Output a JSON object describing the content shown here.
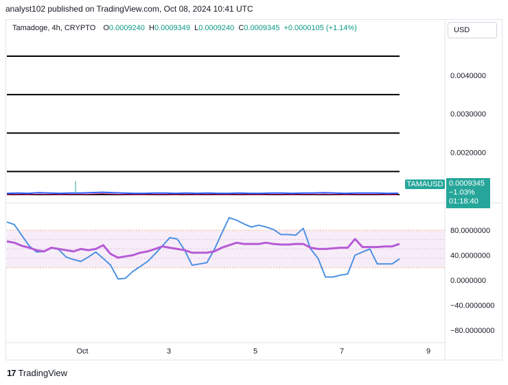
{
  "header": {
    "text": "analyst102 published on TradingView.com, Oct 08, 2024 10:41 UTC"
  },
  "legend": {
    "symbol": "Tamadoge, 4h, CRYPTO",
    "o_label": "O",
    "o_value": "0.0009240",
    "h_label": "H",
    "h_value": "0.0009349",
    "l_label": "L",
    "l_value": "0.0009240",
    "c_label": "C",
    "c_value": "0.0009345",
    "change": "+0.0000105 (+1.14%)"
  },
  "currency_button": "USD",
  "price_tag": {
    "symbol": "TAMAUSD",
    "price": "0.0009345",
    "change": "−1.03%",
    "countdown": "01:18:40"
  },
  "footer": {
    "brand": "TradingView"
  },
  "colors": {
    "accent": "#26a69a",
    "k_line": "#4a90e2",
    "d_line": "#b55ad6",
    "band_fill": "#f3e5f5",
    "hline": "#000000"
  },
  "chart_data": [
    {
      "type": "line",
      "name": "price",
      "y_ticks": [
        "0.0040000",
        "0.0030000",
        "0.0020000"
      ],
      "ylim": [
        0.0009,
        0.0045
      ],
      "horizontal_levels": [
        0.0045,
        0.0035,
        0.0025,
        0.0015,
        0.0009
      ],
      "price_series": [
        0.00093,
        0.00094,
        0.00093,
        0.00095,
        0.00094,
        0.00093,
        0.00094,
        0.00094,
        0.00095,
        0.00096,
        0.00095,
        0.00094,
        0.00093,
        0.00093,
        0.00094,
        0.00094,
        0.00093,
        0.00094,
        0.00093,
        0.00094,
        0.00093,
        0.00093,
        0.00094,
        0.00093,
        0.00093,
        0.00094,
        0.00094,
        0.00093,
        0.00094,
        0.00094,
        0.00095,
        0.00094,
        0.00093,
        0.00094,
        0.00094,
        0.00094,
        0.00093,
        0.000935
      ],
      "spike": {
        "value": 0.00125
      }
    },
    {
      "type": "line",
      "name": "stochastic",
      "y_ticks": [
        "80.0000000",
        "40.0000000",
        "0.0000000",
        "−40.0000000",
        "−80.0000000"
      ],
      "ylim": [
        -90,
        100
      ],
      "band": [
        20,
        80
      ],
      "x_ticks": [
        "Oct",
        "3",
        "5",
        "7",
        "9"
      ],
      "series": [
        {
          "values": [
            93,
            89,
            72,
            55,
            45,
            46,
            52,
            49,
            37,
            33,
            30,
            37,
            45,
            35,
            24,
            2,
            3,
            14,
            22,
            30,
            42,
            55,
            68,
            66,
            48,
            24,
            26,
            28,
            49,
            75,
            100,
            96,
            90,
            85,
            88,
            85,
            81,
            73,
            73,
            72,
            83,
            50,
            35,
            5,
            5,
            8,
            10,
            40,
            45,
            50,
            26,
            26,
            26,
            34
          ]
        },
        {
          "values": [
            62,
            60,
            55,
            52,
            48,
            46,
            52,
            50,
            48,
            46,
            50,
            48,
            50,
            56,
            42,
            36,
            38,
            40,
            44,
            46,
            50,
            54,
            52,
            50,
            48,
            44,
            44,
            44,
            46,
            52,
            56,
            60,
            58,
            58,
            58,
            60,
            58,
            57,
            57,
            58,
            58,
            52,
            50,
            50,
            51,
            52,
            52,
            66,
            53,
            53,
            53,
            54,
            54,
            58
          ]
        }
      ]
    }
  ]
}
